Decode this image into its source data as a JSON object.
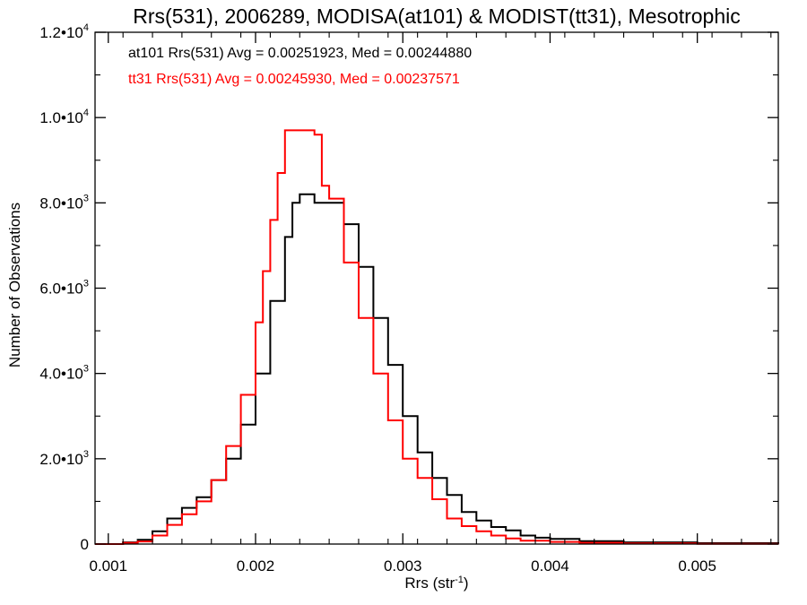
{
  "chart_data": {
    "type": "line",
    "title": "Rrs(531), 2006289, MODISA(at101) & MODIST(tt31), Mesotrophic",
    "xlabel_main": "Rrs (str",
    "xlabel_sup": "-1",
    "xlabel_end": ")",
    "ylabel": "Number of Observations",
    "xlim": [
      0.00091,
      0.00555
    ],
    "ylim": [
      0,
      12000
    ],
    "x_ticks": [
      {
        "label": "0.001",
        "value": 0.001
      },
      {
        "label": "0.002",
        "value": 0.002
      },
      {
        "label": "0.003",
        "value": 0.003
      },
      {
        "label": "0.004",
        "value": 0.004
      },
      {
        "label": "0.005",
        "value": 0.005
      }
    ],
    "y_ticks": [
      {
        "value": 0,
        "mant": "0",
        "exp": ""
      },
      {
        "value": 2000,
        "mant": "2.0•10",
        "exp": "3"
      },
      {
        "value": 4000,
        "mant": "4.0•10",
        "exp": "3"
      },
      {
        "value": 6000,
        "mant": "6.0•10",
        "exp": "3"
      },
      {
        "value": 8000,
        "mant": "8.0•10",
        "exp": "3"
      },
      {
        "value": 10000,
        "mant": "1.0•10",
        "exp": "4"
      },
      {
        "value": 12000,
        "mant": "1.2•10",
        "exp": "4"
      }
    ],
    "legend": [
      "at101 Rrs(531) Avg = 0.00251923, Med = 0.00244880",
      "tt31 Rrs(531) Avg = 0.00245930, Med = 0.00237571"
    ],
    "series": [
      {
        "color": "#000000",
        "x": [
          0.00091,
          0.0011,
          0.0012,
          0.0013,
          0.0014,
          0.0015,
          0.0016,
          0.0017,
          0.0018,
          0.0019,
          0.002,
          0.0021,
          0.0022,
          0.00225,
          0.0023,
          0.0024,
          0.0025,
          0.0026,
          0.0027,
          0.0028,
          0.0029,
          0.003,
          0.0031,
          0.0032,
          0.0033,
          0.0034,
          0.0035,
          0.0036,
          0.0037,
          0.0038,
          0.0039,
          0.004,
          0.0042,
          0.0045,
          0.005,
          0.00555
        ],
        "y": [
          0,
          40,
          100,
          300,
          600,
          850,
          1100,
          1500,
          2000,
          2800,
          4000,
          5700,
          7200,
          8000,
          8200,
          8000,
          8000,
          7500,
          6500,
          5300,
          4200,
          3000,
          2150,
          1550,
          1150,
          750,
          550,
          400,
          320,
          200,
          150,
          120,
          70,
          40,
          20,
          0
        ]
      },
      {
        "color": "#ff0000",
        "x": [
          0.00091,
          0.0011,
          0.0012,
          0.0013,
          0.0014,
          0.0015,
          0.0016,
          0.0017,
          0.0018,
          0.0019,
          0.002,
          0.00205,
          0.0021,
          0.00215,
          0.0022,
          0.0023,
          0.0024,
          0.00245,
          0.0025,
          0.0026,
          0.0027,
          0.0028,
          0.0029,
          0.003,
          0.0031,
          0.0032,
          0.0033,
          0.0034,
          0.0035,
          0.0036,
          0.0037,
          0.0038,
          0.004,
          0.0042,
          0.0045,
          0.005,
          0.00555
        ],
        "y": [
          0,
          30,
          60,
          200,
          450,
          700,
          1000,
          1500,
          2300,
          3500,
          5200,
          6400,
          7600,
          8700,
          9700,
          9700,
          9600,
          8400,
          8100,
          6600,
          5300,
          4000,
          2900,
          2000,
          1550,
          1050,
          600,
          420,
          300,
          200,
          130,
          80,
          50,
          30,
          15,
          5,
          0
        ]
      }
    ]
  }
}
